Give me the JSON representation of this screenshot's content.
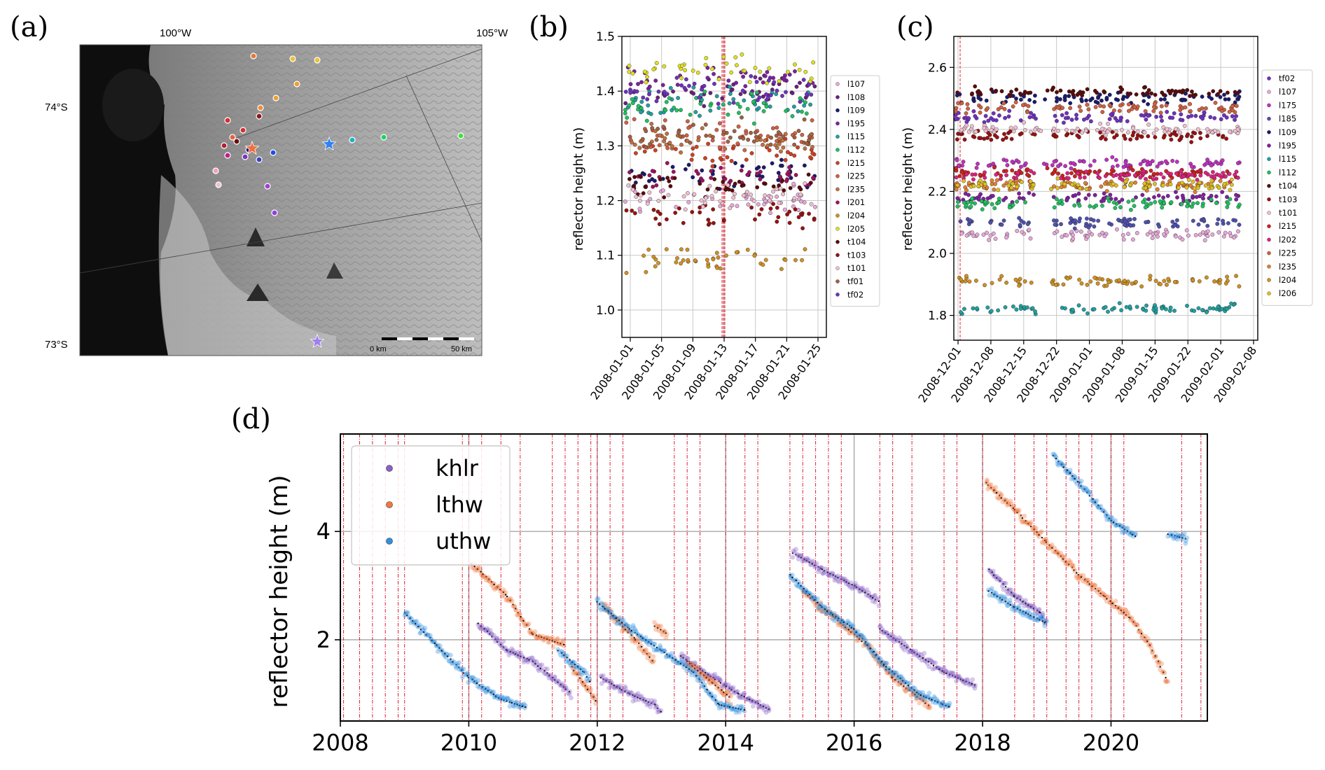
{
  "panels": {
    "a": {
      "letter": "(a)",
      "lon_labels": [
        "100°W",
        "105°W"
      ],
      "lat_labels": [
        "74°S",
        "73°S"
      ],
      "scalebar": {
        "start": "0 km",
        "end": "50 km"
      },
      "stations": [
        {
          "color": "#e07a3a"
        },
        {
          "color": "#e8c23a"
        },
        {
          "color": "#e8c23a"
        },
        {
          "color": "#e8a03a"
        },
        {
          "color": "#e8a03a"
        },
        {
          "color": "#e8903a"
        },
        {
          "color": "#d03030"
        },
        {
          "color": "#8b1a1a"
        },
        {
          "color": "#d03030"
        },
        {
          "color": "#e86040"
        },
        {
          "color": "#b02030"
        },
        {
          "color": "#6a1010"
        },
        {
          "color": "#c0208a"
        },
        {
          "color": "#8030c0"
        },
        {
          "color": "#4040c0"
        },
        {
          "color": "#1a1a8a"
        },
        {
          "color": "#2050e0"
        },
        {
          "color": "#f0a0c0"
        },
        {
          "color": "#f0c0d0"
        },
        {
          "color": "#a040d0"
        },
        {
          "color": "#9040e0"
        },
        {
          "color": "#20b0c0"
        },
        {
          "color": "#20d060"
        },
        {
          "color": "#40e040"
        }
      ],
      "stars": [
        {
          "color": "#f07040"
        },
        {
          "color": "#3080f0"
        },
        {
          "color": "#a080f0"
        }
      ]
    },
    "b": {
      "letter": "(b)",
      "chart_data": {
        "type": "scatter",
        "ylabel": "reflector height (m)",
        "ylim": [
          0.95,
          1.5
        ],
        "yticks": [
          "1.0",
          "1.1",
          "1.2",
          "1.3",
          "1.4",
          "1.5"
        ],
        "xticks": [
          "2008-01-01",
          "2008-01-05",
          "2008-01-09",
          "2008-01-13",
          "2008-01-17",
          "2008-01-21",
          "2008-01-25"
        ],
        "grid": true,
        "legend_position": "right",
        "series": [
          {
            "name": "l107",
            "color": "#e8a8d8",
            "level": 1.2
          },
          {
            "name": "l108",
            "color": "#6a2080",
            "level": 1.4
          },
          {
            "name": "l109",
            "color": "#1a1a70",
            "level": 1.25
          },
          {
            "name": "l195",
            "color": "#8020a0",
            "level": 1.42
          },
          {
            "name": "l115",
            "color": "#20a0a0",
            "level": 1.38
          },
          {
            "name": "l112",
            "color": "#20c060",
            "level": 1.37
          },
          {
            "name": "l215",
            "color": "#d04020",
            "level": 1.29
          },
          {
            "name": "l225",
            "color": "#d06040",
            "level": 1.32
          },
          {
            "name": "l235",
            "color": "#c07040",
            "level": 1.31
          },
          {
            "name": "l201",
            "color": "#a01060",
            "level": 1.24
          },
          {
            "name": "l204",
            "color": "#d09020",
            "level": 1.09
          },
          {
            "name": "l205",
            "color": "#e0e020",
            "level": 1.44
          },
          {
            "name": "t104",
            "color": "#5a0a0a",
            "level": 1.23
          },
          {
            "name": "t103",
            "color": "#9a1010",
            "level": 1.17
          },
          {
            "name": "t101",
            "color": "#f0c0d0",
            "level": 1.21
          },
          {
            "name": "tf01",
            "color": "#a06040",
            "level": 1.32
          },
          {
            "name": "tf02",
            "color": "#7030c0",
            "level": 1.4
          }
        ]
      }
    },
    "c": {
      "letter": "(c)",
      "chart_data": {
        "type": "scatter",
        "ylabel": "reflector height (m)",
        "ylim": [
          1.72,
          2.7
        ],
        "yticks": [
          "1.8",
          "2.0",
          "2.2",
          "2.4",
          "2.6"
        ],
        "xticks": [
          "2008-12-01",
          "2008-12-08",
          "2008-12-15",
          "2008-12-22",
          "2009-01-01",
          "2009-01-08",
          "2009-01-15",
          "2009-01-22",
          "2009-02-01",
          "2009-02-08"
        ],
        "grid": true,
        "legend_position": "right",
        "series": [
          {
            "name": "tf02",
            "color": "#7030c0",
            "level": 2.44
          },
          {
            "name": "l107",
            "color": "#e8a8d8",
            "level": 2.06
          },
          {
            "name": "l175",
            "color": "#c030c0",
            "level": 2.29
          },
          {
            "name": "l185",
            "color": "#5050b0",
            "level": 2.1
          },
          {
            "name": "l109",
            "color": "#1a1a70",
            "level": 2.5
          },
          {
            "name": "l195",
            "color": "#8020a0",
            "level": 2.18
          },
          {
            "name": "l115",
            "color": "#20a0a0",
            "level": 1.82
          },
          {
            "name": "l112",
            "color": "#20c060",
            "level": 2.16
          },
          {
            "name": "t104",
            "color": "#5a0a0a",
            "level": 2.52
          },
          {
            "name": "t103",
            "color": "#9a1010",
            "level": 2.38
          },
          {
            "name": "t101",
            "color": "#f0c0d0",
            "level": 2.4
          },
          {
            "name": "l215",
            "color": "#d02020",
            "level": 2.26
          },
          {
            "name": "l202",
            "color": "#e02080",
            "level": 2.25
          },
          {
            "name": "l225",
            "color": "#d06040",
            "level": 2.47
          },
          {
            "name": "l235",
            "color": "#e08030",
            "level": 2.22
          },
          {
            "name": "l204",
            "color": "#d09020",
            "level": 1.91
          },
          {
            "name": "l206",
            "color": "#e0c020",
            "level": 2.22
          }
        ]
      }
    },
    "d": {
      "letter": "(d)",
      "chart_data": {
        "type": "scatter",
        "ylabel": "reflector height (m)",
        "xlim": [
          2008,
          2021.5
        ],
        "ylim": [
          0.5,
          5.8
        ],
        "xticks": [
          "2008",
          "2010",
          "2012",
          "2014",
          "2016",
          "2018",
          "2020"
        ],
        "yticks": [
          "2",
          "4"
        ],
        "grid": true,
        "legend_position": "top-left",
        "vertical_event_lines": [
          2008.05,
          2008.3,
          2008.5,
          2008.7,
          2008.9,
          2009.0,
          2009.9,
          2010.0,
          2010.2,
          2010.5,
          2010.8,
          2011.3,
          2011.5,
          2011.7,
          2011.9,
          2012.0,
          2012.2,
          2012.4,
          2013.2,
          2013.4,
          2013.6,
          2014.0,
          2014.3,
          2014.5,
          2015.0,
          2015.2,
          2015.4,
          2015.6,
          2015.8,
          2016.4,
          2016.6,
          2016.9,
          2017.4,
          2017.6,
          2018.0,
          2018.5,
          2018.8,
          2019.0,
          2019.3,
          2019.5,
          2019.7,
          2020.0,
          2020.2,
          2021.1,
          2021.4
        ],
        "series": [
          {
            "name": "khlr",
            "color": "#8a60c8",
            "segments": [
              [
                [
                  2010.15,
                  2.3
                ],
                [
                  2010.6,
                  1.8
                ],
                [
                  2011.0,
                  1.6
                ],
                [
                  2011.6,
                  1.0
                ]
              ],
              [
                [
                  2012.05,
                  1.3
                ],
                [
                  2012.5,
                  1.0
                ],
                [
                  2012.9,
                  0.8
                ],
                [
                  2013.0,
                  0.65
                ]
              ],
              [
                [
                  2013.3,
                  1.7
                ],
                [
                  2013.8,
                  1.3
                ],
                [
                  2014.2,
                  1.0
                ],
                [
                  2014.7,
                  0.7
                ]
              ],
              [
                [
                  2015.05,
                  3.6
                ],
                [
                  2015.5,
                  3.3
                ],
                [
                  2016.0,
                  3.0
                ],
                [
                  2016.4,
                  2.7
                ]
              ],
              [
                [
                  2016.4,
                  2.2
                ],
                [
                  2016.9,
                  1.8
                ],
                [
                  2017.4,
                  1.4
                ],
                [
                  2017.9,
                  1.15
                ]
              ],
              [
                [
                  2018.1,
                  3.3
                ],
                [
                  2018.5,
                  2.8
                ],
                [
                  2018.9,
                  2.5
                ],
                [
                  2019.0,
                  2.3
                ]
              ]
            ]
          },
          {
            "name": "lthw",
            "color": "#f07840",
            "segments": [
              [
                [
                  2010.05,
                  3.4
                ],
                [
                  2010.6,
                  2.8
                ],
                [
                  2011.0,
                  2.1
                ],
                [
                  2011.5,
                  1.9
                ]
              ],
              [
                [
                  2011.6,
                  1.5
                ],
                [
                  2012.0,
                  0.85
                ]
              ],
              [
                [
                  2012.1,
                  2.6
                ],
                [
                  2012.6,
                  2.0
                ],
                [
                  2012.9,
                  1.55
                ]
              ],
              [
                [
                  2012.9,
                  2.25
                ],
                [
                  2013.1,
                  2.1
                ]
              ],
              [
                [
                  2013.4,
                  1.6
                ],
                [
                  2013.8,
                  1.2
                ],
                [
                  2014.1,
                  0.9
                ]
              ],
              [
                [
                  2015.2,
                  2.9
                ],
                [
                  2015.7,
                  2.4
                ],
                [
                  2016.2,
                  1.9
                ],
                [
                  2016.6,
                  1.3
                ],
                [
                  2017.2,
                  0.75
                ]
              ],
              [
                [
                  2018.05,
                  4.9
                ],
                [
                  2018.5,
                  4.4
                ],
                [
                  2019.0,
                  3.8
                ],
                [
                  2019.5,
                  3.2
                ],
                [
                  2019.9,
                  2.8
                ],
                [
                  2020.3,
                  2.4
                ],
                [
                  2020.6,
                  1.9
                ],
                [
                  2020.9,
                  1.2
                ]
              ]
            ]
          },
          {
            "name": "uthw",
            "color": "#3090e0",
            "segments": [
              [
                [
                  2009.0,
                  2.5
                ],
                [
                  2009.5,
                  1.9
                ],
                [
                  2010.0,
                  1.3
                ],
                [
                  2010.5,
                  0.9
                ],
                [
                  2010.9,
                  0.75
                ]
              ],
              [
                [
                  2011.4,
                  1.8
                ],
                [
                  2011.8,
                  1.4
                ],
                [
                  2011.9,
                  1.2
                ]
              ],
              [
                [
                  2012.0,
                  2.7
                ],
                [
                  2012.5,
                  2.2
                ],
                [
                  2013.0,
                  1.8
                ],
                [
                  2013.5,
                  1.4
                ],
                [
                  2013.9,
                  0.8
                ],
                [
                  2014.3,
                  0.7
                ]
              ],
              [
                [
                  2015.0,
                  3.2
                ],
                [
                  2015.5,
                  2.6
                ],
                [
                  2016.0,
                  2.2
                ],
                [
                  2016.5,
                  1.5
                ],
                [
                  2017.0,
                  1.0
                ],
                [
                  2017.5,
                  0.75
                ]
              ],
              [
                [
                  2018.1,
                  2.9
                ],
                [
                  2018.5,
                  2.6
                ],
                [
                  2019.0,
                  2.3
                ]
              ],
              [
                [
                  2019.1,
                  5.4
                ],
                [
                  2019.5,
                  4.9
                ],
                [
                  2020.0,
                  4.2
                ],
                [
                  2020.4,
                  3.9
                ]
              ],
              [
                [
                  2020.9,
                  3.95
                ],
                [
                  2021.2,
                  3.85
                ]
              ]
            ]
          }
        ]
      }
    }
  }
}
